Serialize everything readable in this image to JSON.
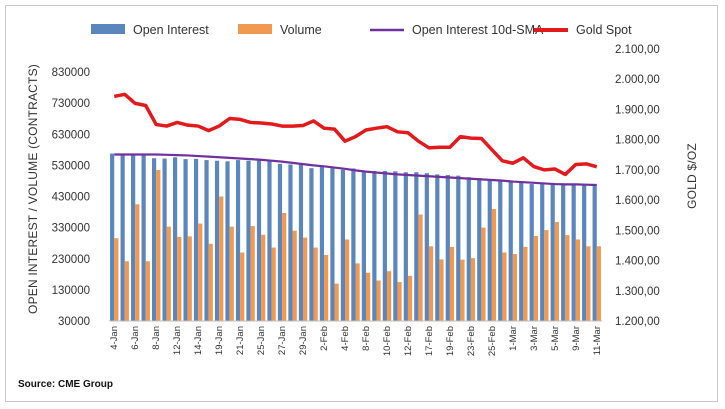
{
  "chart_data": {
    "type": "bar",
    "legend": {
      "position": "top",
      "entries": [
        {
          "name": "Open Interest",
          "kind": "bar",
          "color": "#5a86bd"
        },
        {
          "name": "Volume",
          "kind": "bar",
          "color": "#f19a4f"
        },
        {
          "name": "Open Interest 10d-SMA",
          "kind": "line",
          "color": "#7030a0"
        },
        {
          "name": "Gold Spot",
          "kind": "line",
          "color": "#e31a1c"
        }
      ]
    },
    "ylabel_left": "OPEN INTEREST / VOLUME (CONTRACTS)",
    "ylabel_right": "GOLD $/OZ",
    "ylim_left": [
      30000,
      830000
    ],
    "ylim_right": [
      1200,
      2100
    ],
    "yticks_left": [
      "830000",
      "730000",
      "630000",
      "530000",
      "430000",
      "330000",
      "230000",
      "130000",
      "30000"
    ],
    "yticks_right": [
      "2.100,00",
      "2.000,00",
      "1.900,00",
      "1.800,00",
      "1.700,00",
      "1.600,00",
      "1.500,00",
      "1.400,00",
      "1.300,00",
      "1.200,00"
    ],
    "xtick_labels": [
      "4-Jan",
      "6-Jan",
      "8-Jan",
      "12-Jan",
      "14-Jan",
      "19-Jan",
      "21-Jan",
      "25-Jan",
      "27-Jan",
      "29-Jan",
      "2-Feb",
      "4-Feb",
      "8-Feb",
      "10-Feb",
      "12-Feb",
      "17-Feb",
      "19-Feb",
      "23-Feb",
      "25-Feb",
      "1-Mar",
      "3-Mar",
      "5-Mar",
      "9-Mar",
      "11-Mar"
    ],
    "x": [
      "4-Jan",
      "5-Jan",
      "6-Jan",
      "7-Jan",
      "8-Jan",
      "11-Jan",
      "12-Jan",
      "13-Jan",
      "14-Jan",
      "15-Jan",
      "19-Jan",
      "20-Jan",
      "21-Jan",
      "22-Jan",
      "25-Jan",
      "26-Jan",
      "27-Jan",
      "28-Jan",
      "29-Jan",
      "1-Feb",
      "2-Feb",
      "3-Feb",
      "4-Feb",
      "5-Feb",
      "8-Feb",
      "9-Feb",
      "10-Feb",
      "11-Feb",
      "12-Feb",
      "16-Feb",
      "17-Feb",
      "18-Feb",
      "19-Feb",
      "22-Feb",
      "23-Feb",
      "24-Feb",
      "25-Feb",
      "26-Feb",
      "1-Mar",
      "2-Mar",
      "3-Mar",
      "4-Mar",
      "5-Mar",
      "8-Mar",
      "9-Mar",
      "10-Mar",
      "11-Mar"
    ],
    "series": [
      {
        "name": "Open Interest",
        "type": "bar",
        "axis": "left",
        "values": [
          568000,
          565000,
          567000,
          566000,
          553000,
          552000,
          556000,
          550000,
          551000,
          547000,
          545000,
          543000,
          547000,
          545000,
          547000,
          547000,
          535000,
          533000,
          536000,
          521000,
          527000,
          521000,
          516000,
          520000,
          513000,
          512000,
          512000,
          511000,
          508000,
          508000,
          505000,
          501000,
          499000,
          497000,
          492000,
          489000,
          485000,
          483000,
          481000,
          474000,
          470000,
          472000,
          469000,
          468000,
          471000,
          470000,
          467000
        ]
      },
      {
        "name": "Volume",
        "type": "bar",
        "axis": "left",
        "values": [
          296000,
          222000,
          405000,
          222000,
          515000,
          333000,
          300000,
          302000,
          343000,
          278000,
          430000,
          333000,
          250000,
          335000,
          307000,
          266000,
          377000,
          320000,
          298000,
          266000,
          242000,
          150000,
          292000,
          215000,
          185000,
          160000,
          190000,
          155000,
          175000,
          372000,
          270000,
          228000,
          268000,
          227000,
          232000,
          330000,
          390000,
          250000,
          245000,
          268000,
          303000,
          322000,
          348000,
          306000,
          292000,
          270000,
          270000
        ]
      },
      {
        "name": "Open Interest 10d-SMA",
        "type": "line",
        "axis": "left",
        "values": [
          565000,
          565000,
          565000,
          565000,
          565000,
          564000,
          563000,
          562000,
          560000,
          558000,
          556000,
          554000,
          552000,
          550000,
          548000,
          545000,
          542000,
          538000,
          534000,
          530000,
          527000,
          523000,
          519000,
          514000,
          510000,
          507000,
          504000,
          501000,
          499000,
          497000,
          495000,
          493000,
          491000,
          489000,
          487000,
          485000,
          483000,
          481000,
          478000,
          476000,
          474000,
          472000,
          470000,
          469000,
          469000,
          468000,
          467000
        ]
      },
      {
        "name": "Gold Spot",
        "type": "line",
        "axis": "right",
        "values": [
          1943,
          1950,
          1920,
          1913,
          1850,
          1845,
          1857,
          1848,
          1845,
          1830,
          1845,
          1870,
          1867,
          1857,
          1855,
          1852,
          1845,
          1845,
          1847,
          1862,
          1838,
          1835,
          1795,
          1810,
          1832,
          1838,
          1843,
          1826,
          1823,
          1795,
          1773,
          1775,
          1775,
          1810,
          1805,
          1804,
          1767,
          1730,
          1722,
          1740,
          1711,
          1700,
          1703,
          1685,
          1718,
          1720,
          1710
        ]
      }
    ],
    "grid": false
  },
  "source": "Source: CME Group"
}
